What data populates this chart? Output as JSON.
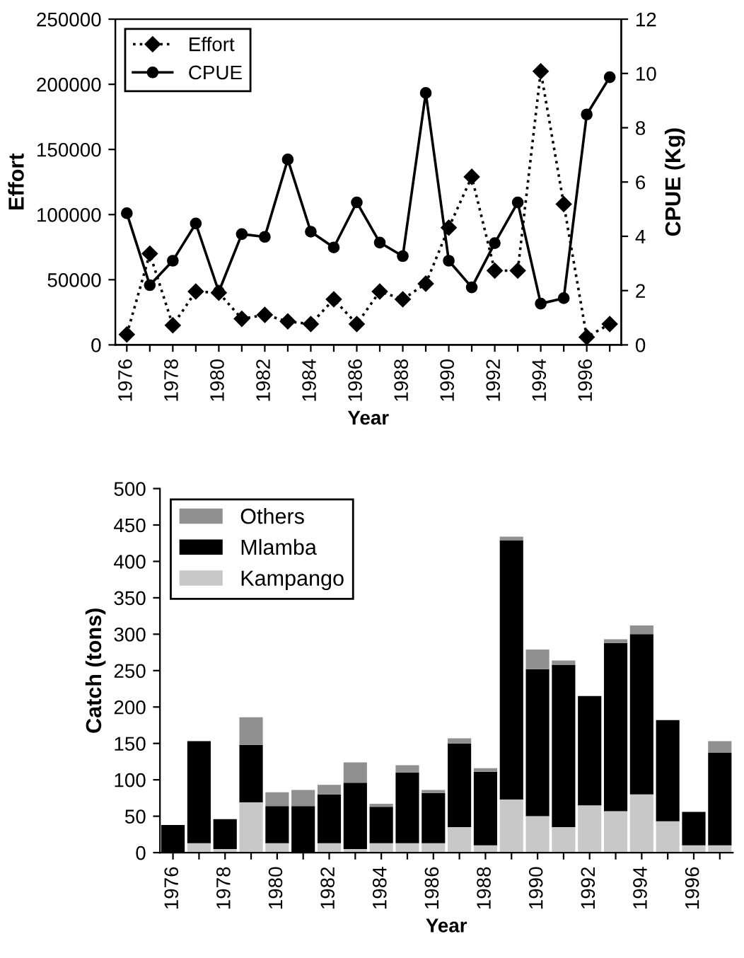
{
  "chart_data": [
    {
      "type": "line",
      "xlabel": "Year",
      "ylabel": "Effort",
      "y2label": "CPUE (Kg)",
      "categories": [
        "1976",
        null,
        "1978",
        null,
        "1980",
        null,
        "1982",
        null,
        "1984",
        null,
        "1986",
        null,
        "1988",
        null,
        "1990",
        null,
        "1992",
        null,
        "1994",
        null,
        "1996",
        null
      ],
      "series": [
        {
          "name": "Effort",
          "color": "#000000",
          "marker": "diamond",
          "line_style": "dotted",
          "values": [
            8000,
            70000,
            15000,
            41000,
            40000,
            20000,
            23000,
            18000,
            16000,
            35000,
            16000,
            41000,
            35000,
            47000,
            90000,
            129000,
            57000,
            57000,
            210000,
            108000,
            6000,
            16000
          ]
        },
        {
          "name": "CPUE",
          "color": "#000000",
          "marker": "circle",
          "line_style": "solid",
          "axis": "y2",
          "values": [
            4.85,
            2.2,
            3.1,
            4.47,
            1.96,
            4.08,
            3.98,
            6.83,
            4.17,
            3.59,
            5.25,
            3.77,
            3.27,
            9.28,
            3.1,
            2.12,
            3.75,
            5.25,
            1.52,
            1.72,
            8.49,
            9.86
          ]
        }
      ],
      "ylim": [
        0,
        250000
      ],
      "yticks": [
        0,
        50000,
        100000,
        150000,
        200000,
        250000
      ],
      "y2lim": [
        0,
        12
      ],
      "y2ticks": [
        0,
        2,
        4,
        6,
        8,
        10,
        12
      ],
      "legend": "top left",
      "grid": false
    },
    {
      "type": "bar",
      "stacked": true,
      "xlabel": "Year",
      "ylabel": "Catch (tons)",
      "categories": [
        "1976",
        null,
        "1978",
        null,
        "1980",
        null,
        "1982",
        null,
        "1984",
        null,
        "1986",
        null,
        "1988",
        null,
        "1990",
        null,
        "1992",
        null,
        "1994",
        null,
        "1996",
        null
      ],
      "series": [
        {
          "name": "Kampango",
          "color": "#c8c8c8",
          "values": [
            0,
            13,
            5,
            69,
            13,
            0,
            13,
            5,
            13,
            13,
            13,
            35,
            10,
            73,
            50,
            35,
            65,
            57,
            80,
            43,
            10,
            10
          ]
        },
        {
          "name": "Mlamba",
          "color": "#000000",
          "values": [
            38,
            140,
            41,
            79,
            51,
            64,
            67,
            91,
            50,
            97,
            69,
            115,
            101,
            356,
            202,
            223,
            150,
            231,
            220,
            139,
            46,
            127
          ]
        },
        {
          "name": "Others",
          "color": "#909090",
          "values": [
            0,
            0,
            0,
            38,
            19,
            22,
            13,
            28,
            4,
            10,
            4,
            7,
            5,
            5,
            27,
            6,
            0,
            5,
            12,
            0,
            0,
            16
          ]
        }
      ],
      "ylim": [
        0,
        500
      ],
      "yticks": [
        0,
        50,
        100,
        150,
        200,
        250,
        300,
        350,
        400,
        450,
        500
      ],
      "legend": "top left",
      "grid": false
    }
  ]
}
